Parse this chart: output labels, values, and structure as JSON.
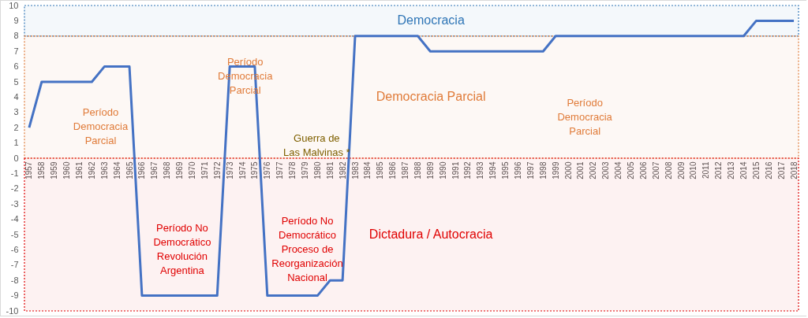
{
  "chart_data": {
    "type": "line",
    "categories": [
      "1957",
      "1958",
      "1959",
      "1960",
      "1961",
      "1962",
      "1963",
      "1964",
      "1965",
      "1966",
      "1967",
      "1968",
      "1969",
      "1970",
      "1971",
      "1972",
      "1973",
      "1974",
      "1975",
      "1976",
      "1977",
      "1978",
      "1979",
      "1980",
      "1981",
      "1982",
      "1983",
      "1984",
      "1985",
      "1986",
      "1987",
      "1988",
      "1989",
      "1990",
      "1991",
      "1992",
      "1993",
      "1994",
      "1995",
      "1996",
      "1997",
      "1998",
      "1999",
      "2000",
      "2001",
      "2002",
      "2003",
      "2004",
      "2005",
      "2006",
      "2007",
      "2008",
      "2009",
      "2010",
      "2011",
      "2012",
      "2013",
      "2014",
      "2015",
      "2016",
      "2017",
      "2018"
    ],
    "series": [
      {
        "color": "#4472c4",
        "values": [
          2,
          5,
          5,
          5,
          5,
          5,
          6,
          6,
          6,
          -9,
          -9,
          -9,
          -9,
          -9,
          -9,
          -9,
          6,
          6,
          6,
          -9,
          -9,
          -9,
          -9,
          -9,
          -8,
          -8,
          8,
          8,
          8,
          8,
          8,
          8,
          7,
          7,
          7,
          7,
          7,
          7,
          7,
          7,
          7,
          7,
          8,
          8,
          8,
          8,
          8,
          8,
          8,
          8,
          8,
          8,
          8,
          8,
          8,
          8,
          8,
          8,
          9,
          9,
          9,
          9
        ]
      }
    ],
    "ylim": [
      -10,
      10
    ],
    "yticks": [
      -10,
      -9,
      -8,
      -7,
      -6,
      -5,
      -4,
      -3,
      -2,
      -1,
      0,
      1,
      2,
      3,
      4,
      5,
      6,
      7,
      8,
      9,
      10
    ],
    "bands": [
      {
        "axis": "y",
        "from": 8,
        "to": 10,
        "label": "Democracia",
        "color": "#2e75b6"
      },
      {
        "axis": "y",
        "from": 0,
        "to": 8,
        "label": "Democracia Parcial",
        "color": "#e07b39"
      },
      {
        "axis": "y",
        "from": -10,
        "to": 0,
        "label": "Dictadura / Autocracia",
        "color": "#e00000"
      }
    ],
    "annotations": [
      "Período\nDemocracia\nParcial",
      "Período\nDemocracia\nParcial",
      "Guerra de\nLas Malvinas  *",
      "Período No\nDemocrático\nRevolución\nArgentina",
      "Período No\nDemocrático\nProceso de\nReorganización\nNacional",
      "Período\nDemocracia\nParcial"
    ]
  }
}
